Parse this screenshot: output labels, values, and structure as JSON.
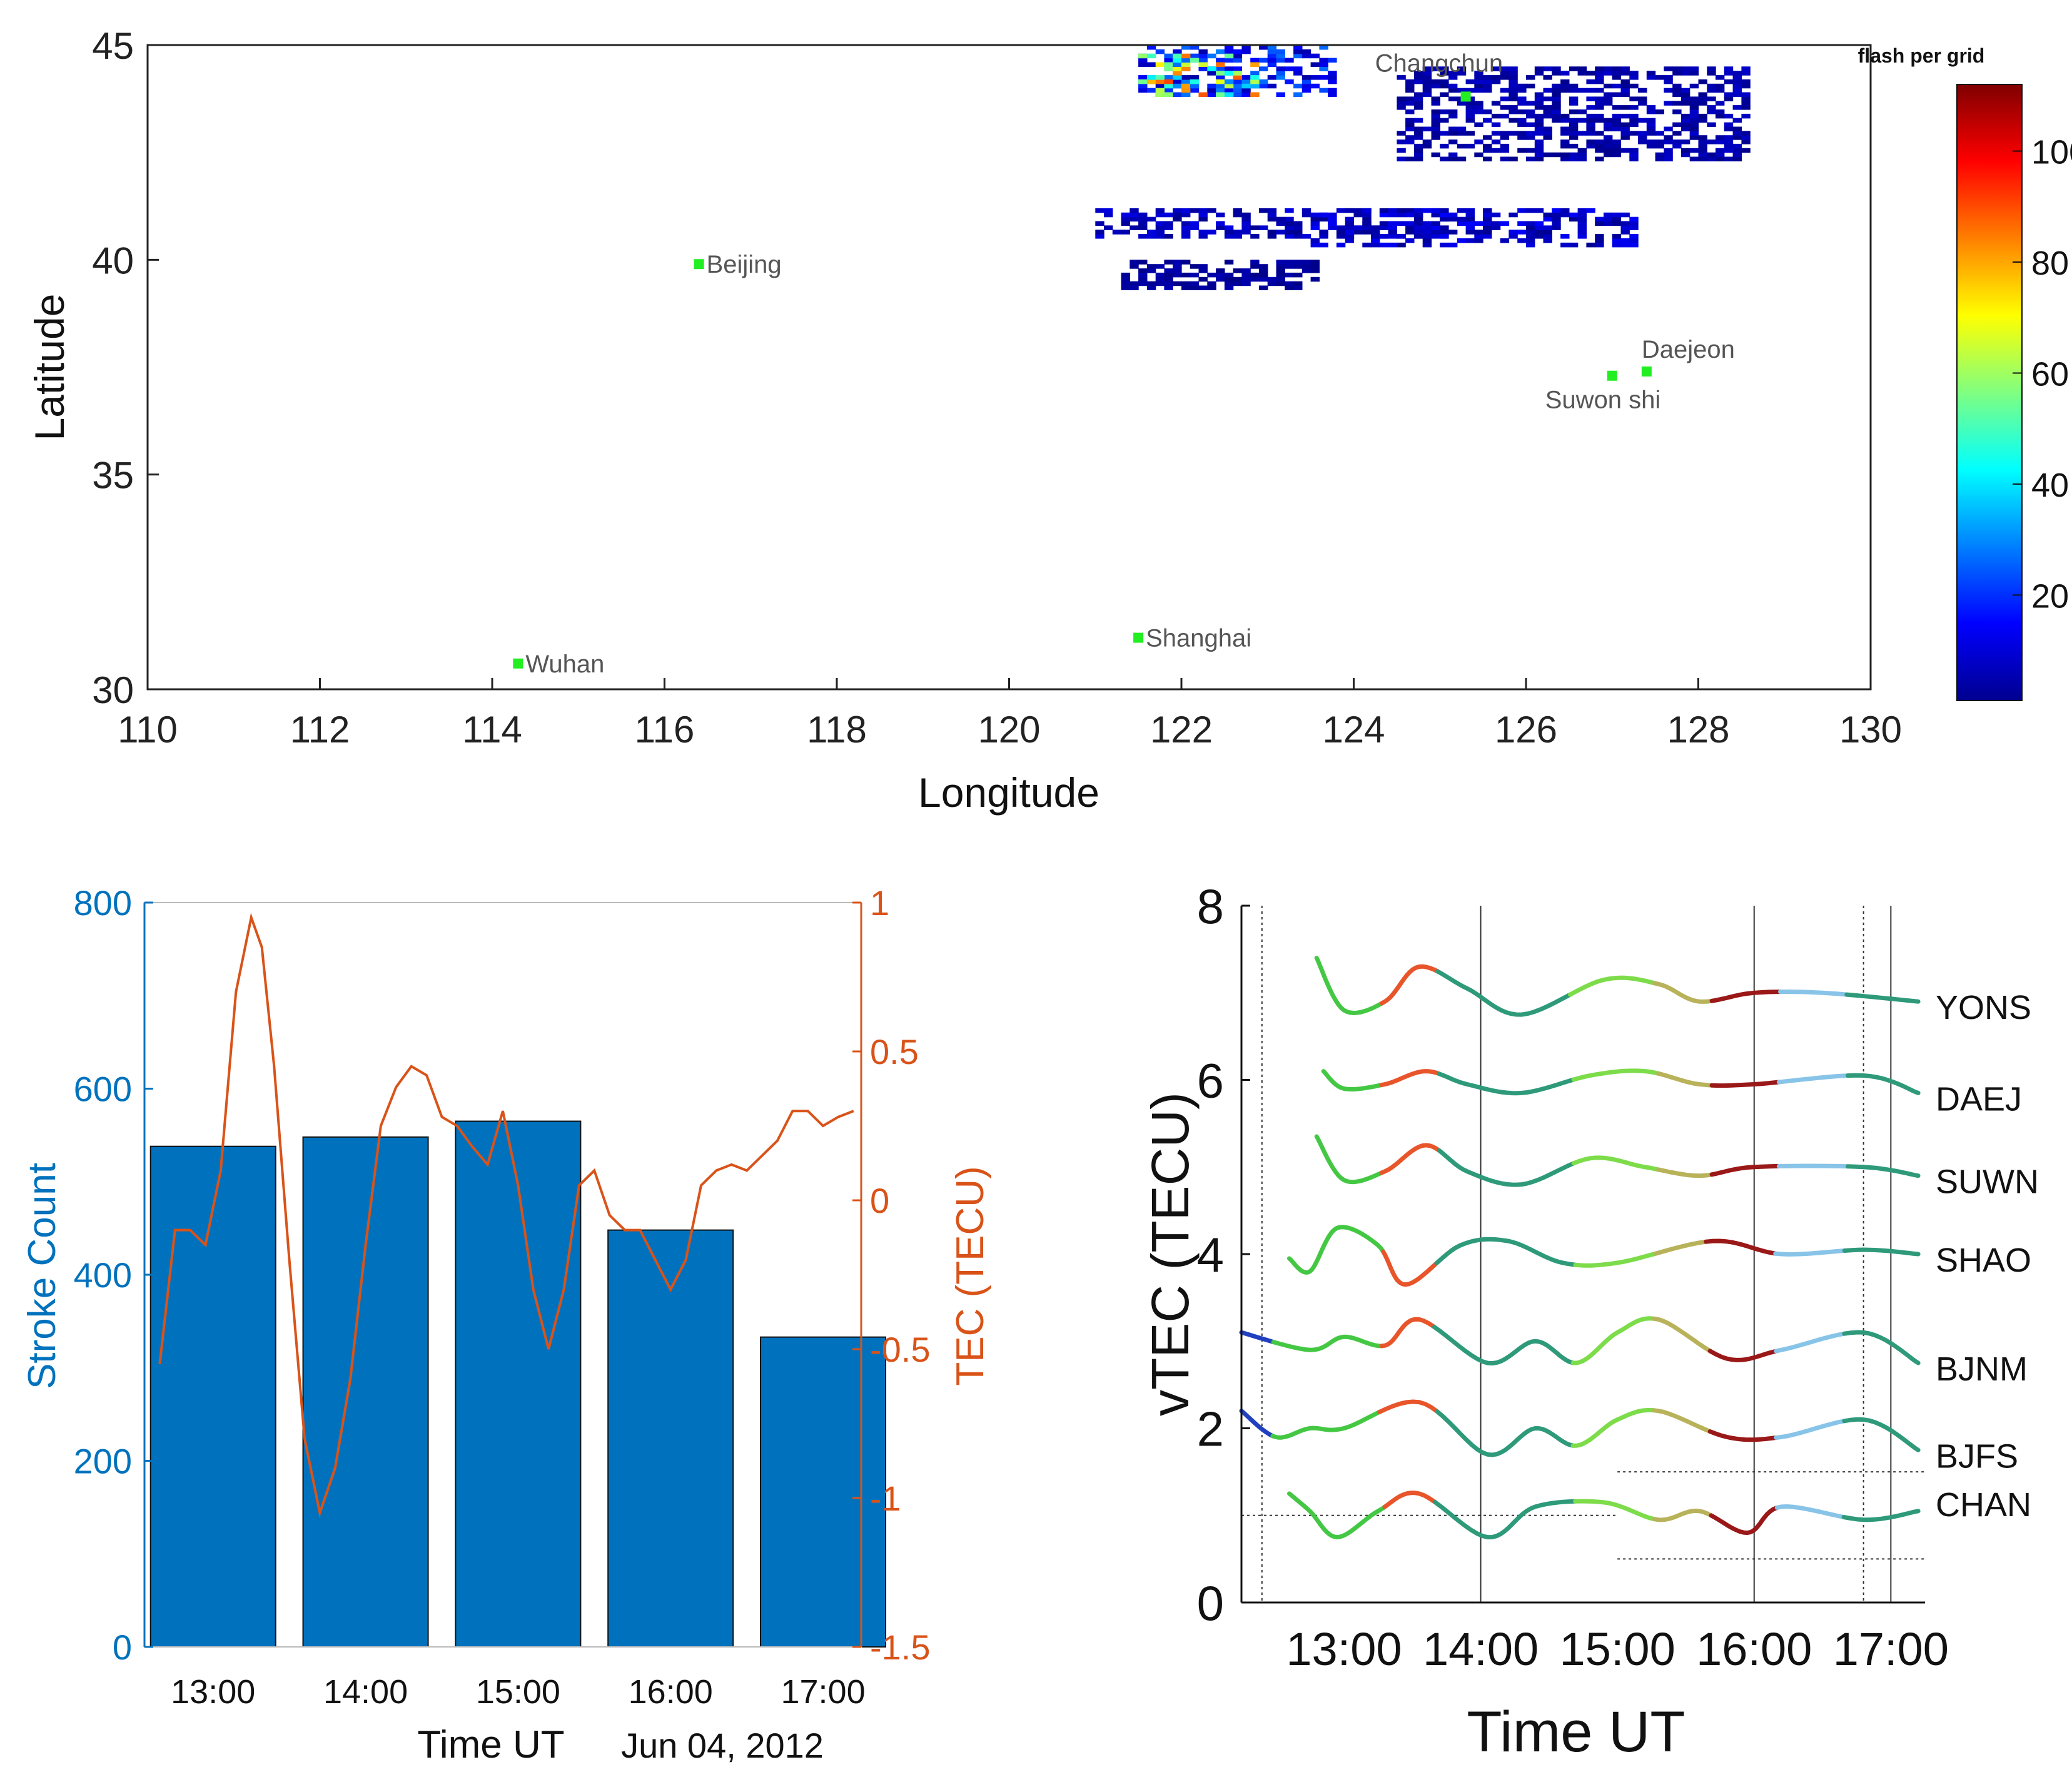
{
  "chart_data": [
    {
      "type": "heatmap",
      "panel": "lightning-map",
      "xlabel": "Longitude",
      "ylabel": "Latitude",
      "xlim": [
        110,
        130
      ],
      "ylim": [
        30,
        45
      ],
      "xticks": [
        110,
        112,
        114,
        116,
        118,
        120,
        122,
        124,
        126,
        128,
        130
      ],
      "yticks": [
        30,
        35,
        40,
        45
      ],
      "colorbar": {
        "title": "flash per grid",
        "min": 1,
        "max": 112,
        "ticks": [
          20,
          40,
          60,
          80,
          100
        ]
      },
      "cities": [
        {
          "name": "Changchun",
          "lon": 125.3,
          "lat": 43.8
        },
        {
          "name": "Beijing",
          "lon": 116.4,
          "lat": 39.9
        },
        {
          "name": "Daejeon",
          "lon": 127.4,
          "lat": 37.4
        },
        {
          "name": "Suwon shi",
          "lon": 127.0,
          "lat": 37.3
        },
        {
          "name": "Shanghai",
          "lon": 121.5,
          "lat": 31.2
        },
        {
          "name": "Wuhan",
          "lon": 114.3,
          "lat": 30.6
        }
      ],
      "clusters": [
        {
          "lon": [
            121.0,
            125.0
          ],
          "lat": [
            40.5,
            41.2
          ],
          "level": 8
        },
        {
          "lon": [
            123.5,
            127.2
          ],
          "lat": [
            40.3,
            41.2
          ],
          "level": 10
        },
        {
          "lon": [
            121.5,
            123.7
          ],
          "lat": [
            43.8,
            45.0
          ],
          "level": 20
        },
        {
          "lon": [
            124.5,
            128.5
          ],
          "lat": [
            42.3,
            44.5
          ],
          "level": 6
        },
        {
          "lon": [
            121.3,
            123.5
          ],
          "lat": [
            39.3,
            40.0
          ],
          "level": 4
        }
      ],
      "hotspot": {
        "lon": [
          121.5,
          122.8
        ],
        "lat": [
          43.8,
          44.8
        ],
        "level": 70
      }
    },
    {
      "type": "bar",
      "panel": "stroke-count",
      "xlabel": "Time UT",
      "date_label": "Jun 04, 2012",
      "ylabel": "Stroke Count",
      "y2label": "TEC (TECU)",
      "ylim": [
        0,
        800
      ],
      "y2lim": [
        -1.5,
        1
      ],
      "categories": [
        "13:00",
        "14:00",
        "15:00",
        "16:00",
        "17:00"
      ],
      "yticks": [
        0,
        200,
        400,
        600,
        800
      ],
      "y2ticks": [
        "1",
        "0.5",
        "0",
        "-0.5",
        "-1",
        "-1.5"
      ],
      "values": [
        538,
        548,
        565,
        448,
        333
      ],
      "tec_series": {
        "name": "TEC",
        "t": [
          12.65,
          12.75,
          12.85,
          12.95,
          13.05,
          13.15,
          13.25,
          13.32,
          13.4,
          13.5,
          13.6,
          13.7,
          13.8,
          13.9,
          14.0,
          14.1,
          14.2,
          14.3,
          14.4,
          14.5,
          14.6,
          14.7,
          14.8,
          14.9,
          15.0,
          15.1,
          15.2,
          15.3,
          15.4,
          15.5,
          15.6,
          15.7,
          15.8,
          15.9,
          16.0,
          16.1,
          16.2,
          16.3,
          16.4,
          16.5,
          16.6,
          16.7,
          16.8,
          16.9,
          17.0,
          17.1,
          17.2
        ],
        "v": [
          -0.55,
          -0.1,
          -0.1,
          -0.15,
          0.1,
          0.7,
          0.95,
          0.85,
          0.45,
          -0.2,
          -0.8,
          -1.05,
          -0.9,
          -0.6,
          -0.15,
          0.25,
          0.38,
          0.45,
          0.42,
          0.28,
          0.25,
          0.18,
          0.12,
          0.3,
          0.05,
          -0.3,
          -0.5,
          -0.3,
          0.05,
          0.1,
          -0.05,
          -0.1,
          -0.1,
          -0.2,
          -0.3,
          -0.2,
          0.05,
          0.1,
          0.12,
          0.1,
          0.15,
          0.2,
          0.3,
          0.3,
          0.25,
          0.28,
          0.3
        ]
      }
    },
    {
      "type": "line",
      "panel": "vtec",
      "xlabel": "Time UT",
      "ylabel": "vTEC (TECU)",
      "ylim": [
        0,
        8
      ],
      "xlim": [
        12.25,
        17.25
      ],
      "xticks": [
        "13:00",
        "14:00",
        "15:00",
        "16:00",
        "17:00"
      ],
      "yticks": [
        0,
        2,
        4,
        6,
        8
      ],
      "vlines": [
        12.4,
        14.0,
        16.0,
        16.8,
        17.0
      ],
      "colors": {
        "blue": "#2040c0",
        "green": "#44c844",
        "orange": "#e8552a",
        "teal": "#2e9a7a",
        "lime": "#7ddc4a",
        "olive": "#b8b25a",
        "darkred": "#9a1818",
        "lightblue": "#88c4e8"
      },
      "segment_bounds": [
        12.5,
        13.3,
        13.7,
        14.7,
        15.3,
        15.7,
        16.2,
        16.7
      ],
      "series": [
        {
          "name": "YONS",
          "start": 12.8,
          "y": [
            7.4,
            6.8,
            6.9,
            7.3,
            7.05,
            6.75,
            7.15,
            7.1,
            6.9,
            7.0,
            7.0,
            6.9
          ],
          "t": [
            12.8,
            13.0,
            13.3,
            13.55,
            13.9,
            14.3,
            14.9,
            15.3,
            15.6,
            16.0,
            16.5,
            17.2
          ]
        },
        {
          "name": "DAEJ",
          "start": 12.85,
          "y": [
            6.1,
            5.9,
            5.95,
            6.1,
            5.95,
            5.85,
            6.05,
            6.1,
            5.95,
            5.95,
            6.05,
            5.85
          ],
          "t": [
            12.85,
            13.0,
            13.3,
            13.6,
            13.9,
            14.3,
            14.8,
            15.2,
            15.6,
            16.0,
            16.8,
            17.2
          ]
        },
        {
          "name": "SUWN",
          "start": 12.8,
          "y": [
            5.35,
            4.85,
            4.95,
            5.25,
            4.95,
            4.8,
            5.1,
            5.0,
            4.9,
            5.0,
            5.0,
            4.9
          ],
          "t": [
            12.8,
            13.0,
            13.3,
            13.6,
            13.9,
            14.3,
            14.8,
            15.2,
            15.6,
            16.0,
            16.8,
            17.2
          ]
        },
        {
          "name": "SHAO",
          "start": 12.6,
          "y": [
            3.95,
            3.8,
            4.3,
            4.1,
            3.65,
            4.1,
            4.15,
            3.9,
            3.9,
            4.15,
            4.0,
            4.05,
            4.0
          ],
          "t": [
            12.6,
            12.75,
            12.95,
            13.25,
            13.45,
            13.85,
            14.2,
            14.6,
            15.0,
            15.7,
            16.2,
            16.8,
            17.2
          ]
        },
        {
          "name": "BJNM",
          "start": 12.25,
          "y": [
            3.1,
            2.9,
            3.05,
            2.95,
            3.25,
            2.75,
            3.0,
            2.75,
            3.1,
            3.25,
            2.8,
            2.9,
            3.1,
            2.75
          ],
          "t": [
            12.25,
            12.75,
            13.0,
            13.3,
            13.55,
            14.05,
            14.4,
            14.7,
            15.0,
            15.3,
            15.8,
            16.2,
            16.8,
            17.2
          ]
        },
        {
          "name": "BJFS",
          "start": 12.25,
          "y": [
            2.2,
            1.9,
            2.0,
            2.0,
            2.3,
            1.7,
            2.0,
            1.8,
            2.1,
            2.2,
            1.9,
            1.9,
            2.1,
            1.75
          ],
          "t": [
            12.25,
            12.5,
            12.75,
            13.0,
            13.55,
            14.05,
            14.4,
            14.7,
            15.0,
            15.3,
            15.8,
            16.2,
            16.8,
            17.2
          ]
        },
        {
          "name": "CHAN",
          "start": 12.6,
          "y": [
            1.25,
            1.05,
            0.75,
            1.05,
            1.25,
            0.75,
            1.1,
            1.15,
            0.95,
            1.05,
            0.8,
            1.1,
            0.95,
            1.05
          ],
          "t": [
            12.6,
            12.75,
            12.95,
            13.25,
            13.55,
            14.05,
            14.4,
            14.9,
            15.3,
            15.6,
            15.95,
            16.2,
            16.8,
            17.2
          ]
        }
      ]
    }
  ]
}
